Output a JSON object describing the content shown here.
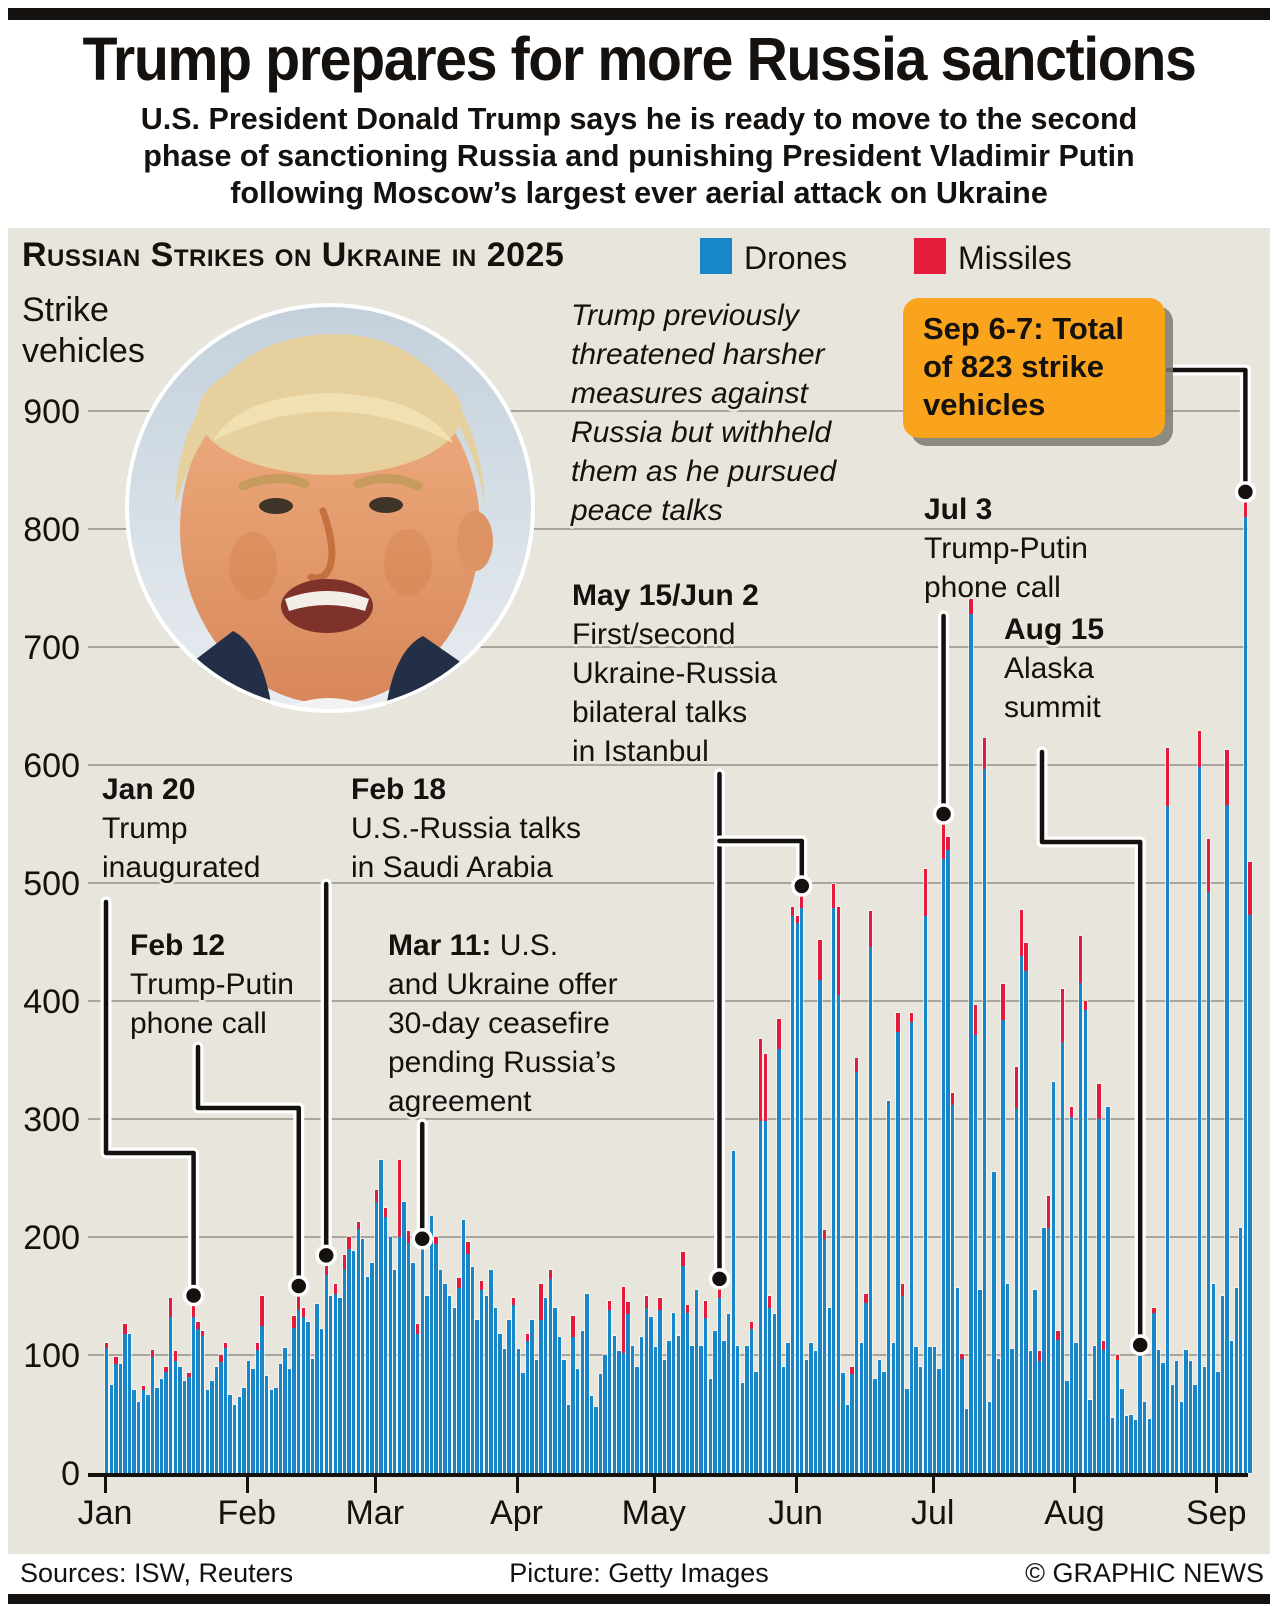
{
  "page": {
    "title": "Trump prepares for more Russia sanctions",
    "subtitle_lines": [
      "U.S. President Donald Trump says he is ready to move to the second",
      "phase of sanctioning Russia and punishing President Vladimir Putin",
      "following Moscow’s largest ever aerial attack on Ukraine"
    ],
    "footer": {
      "sources": "Sources: ISW, Reuters",
      "picture": "Picture: Getty Images",
      "credit": "© GRAPHIC NEWS"
    }
  },
  "colors": {
    "drones": "#1787c9",
    "missiles": "#e51b3c",
    "panel_bg": "#e7e5dc",
    "callout_bg": "#f9a41c",
    "grid": "#a7a59c",
    "ink": "#14110e"
  },
  "chart": {
    "heading": "Russian Strikes on Ukraine in 2025",
    "y_axis_title_lines": [
      "Strike",
      "vehicles"
    ],
    "legend": [
      {
        "label": "Drones",
        "color": "#1787c9"
      },
      {
        "label": "Missiles",
        "color": "#e51b3c"
      }
    ]
  },
  "annotations": {
    "note": {
      "style": "italic",
      "lines": [
        "Trump previously",
        "threatened harsher",
        "measures against",
        "Russia but withheld",
        "them as he pursued",
        "peace talks"
      ]
    },
    "callout": {
      "lines": [
        "Sep 6-7: Total",
        "of 823 strike",
        "vehicles"
      ],
      "anchor_date": "Sep 7"
    },
    "events": [
      {
        "id": "jan20",
        "title": "Jan 20",
        "lines": [
          "Trump",
          "inaugurated"
        ],
        "month": 1,
        "day": 20
      },
      {
        "id": "feb12",
        "title": "Feb 12",
        "lines": [
          "Trump-Putin",
          "phone call"
        ],
        "month": 2,
        "day": 12
      },
      {
        "id": "feb18",
        "title": "Feb 18",
        "lines": [
          "U.S.-Russia talks",
          "in Saudi Arabia"
        ],
        "month": 2,
        "day": 18
      },
      {
        "id": "mar11",
        "title": "Mar 11:",
        "title_inline": " U.S.",
        "lines": [
          "and Ukraine offer",
          "30-day ceasefire",
          "pending Russia’s",
          "agreement"
        ],
        "month": 3,
        "day": 11
      },
      {
        "id": "may15",
        "title": "May 15/Jun 2",
        "lines": [
          "First/second",
          "Ukraine-Russia",
          "bilateral talks",
          "in Istanbul"
        ],
        "month": 5,
        "day": 15
      },
      {
        "id": "jul3",
        "title": "Jul 3",
        "lines": [
          "Trump-Putin",
          "phone call"
        ],
        "month": 7,
        "day": 3
      },
      {
        "id": "aug15",
        "title": "Aug 15",
        "lines": [
          "Alaska",
          "summit"
        ],
        "month": 8,
        "day": 15
      }
    ]
  },
  "chart_data": {
    "type": "bar",
    "stacked": true,
    "title": "Russian Strikes on Ukraine in 2025",
    "ylabel": "Strike vehicles",
    "series_names": [
      "Drones",
      "Missiles"
    ],
    "ylim": [
      0,
      900
    ],
    "yticks": [
      0,
      100,
      200,
      300,
      400,
      500,
      600,
      700,
      800,
      900
    ],
    "day_format": [
      "total_strike_vehicles",
      "missiles_portion"
    ],
    "highlight": {
      "date": "Sep 6-7",
      "total": 823
    },
    "months": [
      {
        "label": "Jan",
        "days": [
          [
            110,
            4
          ],
          [
            75,
            0
          ],
          [
            98,
            6
          ],
          [
            92,
            0
          ],
          [
            126,
            8
          ],
          [
            118,
            0
          ],
          [
            70,
            0
          ],
          [
            60,
            0
          ],
          [
            74,
            4
          ],
          [
            66,
            0
          ],
          [
            104,
            6
          ],
          [
            72,
            0
          ],
          [
            80,
            0
          ],
          [
            90,
            4
          ],
          [
            148,
            16
          ],
          [
            103,
            8
          ],
          [
            90,
            0
          ],
          [
            78,
            0
          ],
          [
            85,
            4
          ],
          [
            142,
            10
          ],
          [
            128,
            6
          ],
          [
            120,
            4
          ],
          [
            70,
            0
          ],
          [
            78,
            0
          ],
          [
            90,
            0
          ],
          [
            100,
            6
          ],
          [
            110,
            4
          ],
          [
            66,
            0
          ],
          [
            58,
            0
          ],
          [
            64,
            0
          ],
          [
            72,
            0
          ]
        ]
      },
      {
        "label": "Feb",
        "days": [
          [
            95,
            0
          ],
          [
            88,
            0
          ],
          [
            110,
            6
          ],
          [
            150,
            25
          ],
          [
            82,
            0
          ],
          [
            70,
            0
          ],
          [
            72,
            0
          ],
          [
            92,
            0
          ],
          [
            106,
            0
          ],
          [
            88,
            0
          ],
          [
            133,
            10
          ],
          [
            150,
            12
          ],
          [
            140,
            8
          ],
          [
            128,
            0
          ],
          [
            97,
            0
          ],
          [
            143,
            0
          ],
          [
            122,
            0
          ],
          [
            176,
            8
          ],
          [
            150,
            0
          ],
          [
            160,
            8
          ],
          [
            148,
            0
          ],
          [
            185,
            12
          ],
          [
            200,
            10
          ],
          [
            188,
            0
          ],
          [
            213,
            6
          ],
          [
            198,
            0
          ],
          [
            166,
            0
          ],
          [
            178,
            0
          ]
        ]
      },
      {
        "label": "Mar",
        "days": [
          [
            240,
            10
          ],
          [
            265,
            0
          ],
          [
            225,
            8
          ],
          [
            200,
            0
          ],
          [
            172,
            0
          ],
          [
            265,
            65
          ],
          [
            230,
            0
          ],
          [
            205,
            10
          ],
          [
            178,
            0
          ],
          [
            126,
            8
          ],
          [
            190,
            0
          ],
          [
            150,
            0
          ],
          [
            218,
            0
          ],
          [
            200,
            6
          ],
          [
            172,
            0
          ],
          [
            160,
            0
          ],
          [
            150,
            0
          ],
          [
            140,
            0
          ],
          [
            165,
            8
          ],
          [
            214,
            0
          ],
          [
            196,
            10
          ],
          [
            175,
            0
          ],
          [
            130,
            0
          ],
          [
            163,
            8
          ],
          [
            150,
            0
          ],
          [
            172,
            0
          ],
          [
            140,
            0
          ],
          [
            118,
            0
          ],
          [
            105,
            0
          ],
          [
            130,
            0
          ],
          [
            148,
            6
          ]
        ]
      },
      {
        "label": "Apr",
        "days": [
          [
            105,
            0
          ],
          [
            85,
            0
          ],
          [
            118,
            6
          ],
          [
            130,
            0
          ],
          [
            96,
            0
          ],
          [
            160,
            30
          ],
          [
            148,
            0
          ],
          [
            172,
            8
          ],
          [
            140,
            0
          ],
          [
            115,
            0
          ],
          [
            96,
            0
          ],
          [
            58,
            0
          ],
          [
            133,
            18
          ],
          [
            88,
            0
          ],
          [
            120,
            0
          ],
          [
            152,
            0
          ],
          [
            65,
            0
          ],
          [
            56,
            0
          ],
          [
            84,
            0
          ],
          [
            100,
            0
          ],
          [
            146,
            8
          ],
          [
            116,
            0
          ],
          [
            103,
            0
          ],
          [
            158,
            56
          ],
          [
            145,
            10
          ],
          [
            108,
            0
          ],
          [
            90,
            0
          ],
          [
            115,
            0
          ],
          [
            150,
            10
          ],
          [
            132,
            0
          ]
        ]
      },
      {
        "label": "May",
        "days": [
          [
            107,
            0
          ],
          [
            148,
            10
          ],
          [
            96,
            0
          ],
          [
            112,
            0
          ],
          [
            136,
            0
          ],
          [
            116,
            0
          ],
          [
            187,
            12
          ],
          [
            142,
            6
          ],
          [
            108,
            0
          ],
          [
            155,
            0
          ],
          [
            108,
            0
          ],
          [
            146,
            15
          ],
          [
            80,
            0
          ],
          [
            120,
            0
          ],
          [
            156,
            8
          ],
          [
            112,
            0
          ],
          [
            135,
            0
          ],
          [
            273,
            0
          ],
          [
            108,
            0
          ],
          [
            76,
            0
          ],
          [
            108,
            0
          ],
          [
            128,
            6
          ],
          [
            86,
            0
          ],
          [
            368,
            70
          ],
          [
            355,
            57
          ],
          [
            150,
            10
          ],
          [
            135,
            0
          ],
          [
            385,
            26
          ],
          [
            90,
            0
          ],
          [
            110,
            0
          ],
          [
            480,
            8
          ]
        ]
      },
      {
        "label": "Jun",
        "days": [
          [
            472,
            6
          ],
          [
            489,
            10
          ],
          [
            96,
            0
          ],
          [
            110,
            0
          ],
          [
            103,
            0
          ],
          [
            452,
            34
          ],
          [
            206,
            8
          ],
          [
            140,
            0
          ],
          [
            499,
            20
          ],
          [
            480,
            75
          ],
          [
            85,
            0
          ],
          [
            58,
            0
          ],
          [
            90,
            6
          ],
          [
            352,
            12
          ],
          [
            110,
            0
          ],
          [
            152,
            8
          ],
          [
            476,
            30
          ],
          [
            80,
            0
          ],
          [
            96,
            0
          ],
          [
            86,
            0
          ],
          [
            315,
            0
          ],
          [
            110,
            0
          ],
          [
            390,
            16
          ],
          [
            160,
            10
          ],
          [
            71,
            0
          ],
          [
            390,
            8
          ],
          [
            107,
            0
          ],
          [
            90,
            0
          ],
          [
            512,
            40
          ],
          [
            107,
            0
          ]
        ]
      },
      {
        "label": "Jul",
        "days": [
          [
            107,
            0
          ],
          [
            88,
            0
          ],
          [
            550,
            30
          ],
          [
            539,
            11
          ],
          [
            322,
            10
          ],
          [
            157,
            0
          ],
          [
            101,
            4
          ],
          [
            54,
            0
          ],
          [
            741,
            13
          ],
          [
            397,
            26
          ],
          [
            155,
            0
          ],
          [
            623,
            26
          ],
          [
            60,
            0
          ],
          [
            255,
            0
          ],
          [
            97,
            0
          ],
          [
            414,
            30
          ],
          [
            160,
            0
          ],
          [
            105,
            0
          ],
          [
            344,
            35
          ],
          [
            477,
            39
          ],
          [
            449,
            24
          ],
          [
            103,
            0
          ],
          [
            155,
            0
          ],
          [
            103,
            8
          ],
          [
            208,
            0
          ],
          [
            235,
            27
          ],
          [
            331,
            0
          ],
          [
            120,
            7
          ],
          [
            410,
            45
          ],
          [
            78,
            0
          ],
          [
            310,
            8
          ]
        ]
      },
      {
        "label": "Aug",
        "days": [
          [
            110,
            0
          ],
          [
            455,
            40
          ],
          [
            400,
            8
          ],
          [
            62,
            0
          ],
          [
            108,
            0
          ],
          [
            330,
            30
          ],
          [
            112,
            8
          ],
          [
            310,
            0
          ],
          [
            47,
            0
          ],
          [
            100,
            4
          ],
          [
            71,
            0
          ],
          [
            48,
            0
          ],
          [
            49,
            0
          ],
          [
            45,
            0
          ],
          [
            100,
            0
          ],
          [
            60,
            0
          ],
          [
            46,
            0
          ],
          [
            140,
            4
          ],
          [
            104,
            0
          ],
          [
            93,
            0
          ],
          [
            614,
            49
          ],
          [
            75,
            0
          ],
          [
            95,
            0
          ],
          [
            60,
            0
          ],
          [
            104,
            0
          ],
          [
            95,
            0
          ],
          [
            75,
            0
          ],
          [
            629,
            31
          ],
          [
            90,
            0
          ],
          [
            537,
            45
          ],
          [
            160,
            0
          ]
        ]
      },
      {
        "label": "Sep",
        "days": [
          [
            86,
            0
          ],
          [
            150,
            0
          ],
          [
            613,
            47
          ],
          [
            112,
            0
          ],
          [
            157,
            0
          ],
          [
            208,
            0
          ],
          [
            823,
            13
          ],
          [
            518,
            45
          ]
        ]
      }
    ]
  }
}
